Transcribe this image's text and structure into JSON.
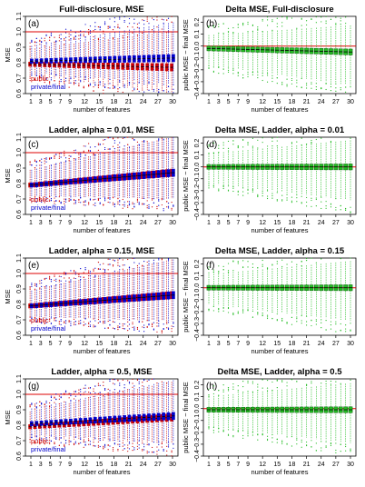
{
  "chart_data": [
    {
      "type": "box",
      "panel_label": "(a)",
      "title": "Full-disclosure, MSE",
      "xlabel": "number of features",
      "ylabel": "MSE",
      "x": [
        1,
        2,
        3,
        4,
        5,
        6,
        7,
        8,
        9,
        10,
        11,
        12,
        13,
        14,
        15,
        16,
        17,
        18,
        19,
        20,
        21,
        22,
        23,
        24,
        25,
        26,
        27,
        28,
        29,
        30
      ],
      "xtick_labels": [
        "1",
        "3",
        "5",
        "7",
        "9",
        "12",
        "15",
        "18",
        "21",
        "24",
        "27",
        "30"
      ],
      "yticks": [
        "0.6",
        "0.7",
        "0.8",
        "0.9",
        "1.0",
        "1.1"
      ],
      "ylim": [
        0.6,
        1.1
      ],
      "reference_line": 1.0,
      "legend": [
        "public",
        "private/final"
      ],
      "series": [
        {
          "name": "public",
          "color": "#cc0000",
          "median_start": 0.79,
          "median_end": 0.77
        },
        {
          "name": "private/final",
          "color": "#0000cc",
          "median_start": 0.81,
          "median_end": 0.83
        }
      ]
    },
    {
      "type": "box",
      "panel_label": "(b)",
      "title": "Delta MSE, Full-disclosure",
      "xlabel": "number of features",
      "ylabel": "public MSE − final MSE",
      "x": [
        1,
        2,
        3,
        4,
        5,
        6,
        7,
        8,
        9,
        10,
        11,
        12,
        13,
        14,
        15,
        16,
        17,
        18,
        19,
        20,
        21,
        22,
        23,
        24,
        25,
        26,
        27,
        28,
        29,
        30
      ],
      "xtick_labels": [
        "1",
        "3",
        "5",
        "7",
        "9",
        "12",
        "15",
        "18",
        "21",
        "24",
        "27",
        "30"
      ],
      "yticks": [
        "−0.4",
        "−0.3",
        "−0.2",
        "−0.1",
        "0.0",
        "0.1",
        "0.2"
      ],
      "ylim": [
        -0.4,
        0.25
      ],
      "reference_line": 0.0,
      "series": [
        {
          "color": "#22bb22",
          "median_start": -0.02,
          "median_end": -0.05
        }
      ]
    },
    {
      "type": "box",
      "panel_label": "(c)",
      "title": "Ladder, alpha = 0.01, MSE",
      "xlabel": "number of features",
      "ylabel": "MSE",
      "x": [
        1,
        2,
        3,
        4,
        5,
        6,
        7,
        8,
        9,
        10,
        11,
        12,
        13,
        14,
        15,
        16,
        17,
        18,
        19,
        20,
        21,
        22,
        23,
        24,
        25,
        26,
        27,
        28,
        29,
        30
      ],
      "xtick_labels": [
        "1",
        "3",
        "5",
        "7",
        "9",
        "12",
        "15",
        "18",
        "21",
        "24",
        "27",
        "30"
      ],
      "yticks": [
        "0.6",
        "0.7",
        "0.8",
        "0.9",
        "1.0",
        "1.1"
      ],
      "ylim": [
        0.6,
        1.1
      ],
      "reference_line": 1.0,
      "legend": [
        "public",
        "private/final"
      ],
      "series": [
        {
          "name": "public",
          "color": "#cc0000",
          "median_start": 0.79,
          "median_end": 0.87
        },
        {
          "name": "private/final",
          "color": "#0000cc",
          "median_start": 0.79,
          "median_end": 0.87
        }
      ]
    },
    {
      "type": "box",
      "panel_label": "(d)",
      "title": "Delta MSE, Ladder, alpha = 0.01",
      "xlabel": "number of features",
      "ylabel": "public MSE − final MSE",
      "x": [
        1,
        2,
        3,
        4,
        5,
        6,
        7,
        8,
        9,
        10,
        11,
        12,
        13,
        14,
        15,
        16,
        17,
        18,
        19,
        20,
        21,
        22,
        23,
        24,
        25,
        26,
        27,
        28,
        29,
        30
      ],
      "xtick_labels": [
        "1",
        "3",
        "5",
        "7",
        "9",
        "12",
        "15",
        "18",
        "21",
        "24",
        "27",
        "30"
      ],
      "yticks": [
        "−0.4",
        "−0.3",
        "−0.2",
        "−0.1",
        "0.0",
        "0.1",
        "0.2"
      ],
      "ylim": [
        -0.4,
        0.25
      ],
      "reference_line": 0.0,
      "series": [
        {
          "color": "#22bb22",
          "median_start": 0.0,
          "median_end": 0.0
        }
      ]
    },
    {
      "type": "box",
      "panel_label": "(e)",
      "title": "Ladder, alpha = 0.15, MSE",
      "xlabel": "number of features",
      "ylabel": "MSE",
      "x": [
        1,
        2,
        3,
        4,
        5,
        6,
        7,
        8,
        9,
        10,
        11,
        12,
        13,
        14,
        15,
        16,
        17,
        18,
        19,
        20,
        21,
        22,
        23,
        24,
        25,
        26,
        27,
        28,
        29,
        30
      ],
      "xtick_labels": [
        "1",
        "3",
        "5",
        "7",
        "9",
        "12",
        "15",
        "18",
        "21",
        "24",
        "27",
        "30"
      ],
      "yticks": [
        "0.6",
        "0.7",
        "0.8",
        "0.9",
        "1.0",
        "1.1"
      ],
      "ylim": [
        0.6,
        1.1
      ],
      "reference_line": 1.0,
      "legend": [
        "public",
        "private/final"
      ],
      "series": [
        {
          "name": "public",
          "color": "#cc0000",
          "median_start": 0.79,
          "median_end": 0.86
        },
        {
          "name": "private/final",
          "color": "#0000cc",
          "median_start": 0.79,
          "median_end": 0.86
        }
      ]
    },
    {
      "type": "box",
      "panel_label": "(f)",
      "title": "Delta MSE, Ladder, alpha = 0.15",
      "xlabel": "number of features",
      "ylabel": "public MSE − final MSE",
      "x": [
        1,
        2,
        3,
        4,
        5,
        6,
        7,
        8,
        9,
        10,
        11,
        12,
        13,
        14,
        15,
        16,
        17,
        18,
        19,
        20,
        21,
        22,
        23,
        24,
        25,
        26,
        27,
        28,
        29,
        30
      ],
      "xtick_labels": [
        "1",
        "3",
        "5",
        "7",
        "9",
        "12",
        "15",
        "18",
        "21",
        "24",
        "27",
        "30"
      ],
      "yticks": [
        "−0.4",
        "−0.3",
        "−0.2",
        "−0.1",
        "0.0",
        "0.1",
        "0.2"
      ],
      "ylim": [
        -0.4,
        0.25
      ],
      "reference_line": 0.0,
      "series": [
        {
          "color": "#22bb22",
          "median_start": 0.0,
          "median_end": 0.0
        }
      ]
    },
    {
      "type": "box",
      "panel_label": "(g)",
      "title": "Ladder, alpha = 0.5, MSE",
      "xlabel": "number of features",
      "ylabel": "MSE",
      "x": [
        1,
        2,
        3,
        4,
        5,
        6,
        7,
        8,
        9,
        10,
        11,
        12,
        13,
        14,
        15,
        16,
        17,
        18,
        19,
        20,
        21,
        22,
        23,
        24,
        25,
        26,
        27,
        28,
        29,
        30
      ],
      "xtick_labels": [
        "1",
        "3",
        "5",
        "7",
        "9",
        "12",
        "15",
        "18",
        "21",
        "24",
        "27",
        "30"
      ],
      "yticks": [
        "0.6",
        "0.7",
        "0.8",
        "0.9",
        "1.0",
        "1.1"
      ],
      "ylim": [
        0.6,
        1.1
      ],
      "reference_line": 1.0,
      "legend": [
        "public",
        "private/final"
      ],
      "series": [
        {
          "name": "public",
          "color": "#cc0000",
          "median_start": 0.79,
          "median_end": 0.85
        },
        {
          "name": "private/final",
          "color": "#0000cc",
          "median_start": 0.81,
          "median_end": 0.86
        }
      ]
    },
    {
      "type": "box",
      "panel_label": "(h)",
      "title": "Delta MSE, Ladder, alpha = 0.5",
      "xlabel": "number of features",
      "ylabel": "public MSE − final MSE",
      "x": [
        1,
        2,
        3,
        4,
        5,
        6,
        7,
        8,
        9,
        10,
        11,
        12,
        13,
        14,
        15,
        16,
        17,
        18,
        19,
        20,
        21,
        22,
        23,
        24,
        25,
        26,
        27,
        28,
        29,
        30
      ],
      "xtick_labels": [
        "1",
        "3",
        "5",
        "7",
        "9",
        "12",
        "15",
        "18",
        "21",
        "24",
        "27",
        "30"
      ],
      "yticks": [
        "−0.4",
        "−0.3",
        "−0.2",
        "−0.1",
        "0.0",
        "0.1",
        "0.2"
      ],
      "ylim": [
        -0.4,
        0.25
      ],
      "reference_line": 0.0,
      "series": [
        {
          "color": "#22bb22",
          "median_start": -0.01,
          "median_end": -0.01
        }
      ]
    }
  ]
}
